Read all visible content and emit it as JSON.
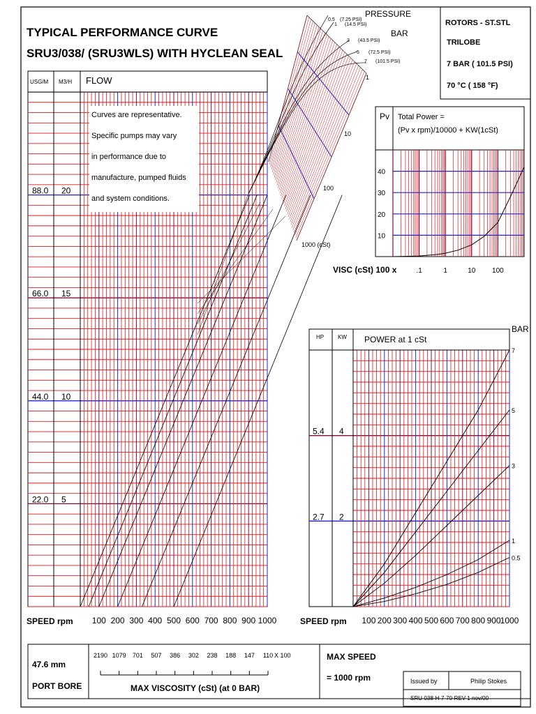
{
  "title": {
    "line1": "TYPICAL PERFORMANCE CURVE",
    "line2": "SRU3/038/ (SRU3WLS) WITH HYCLEAN SEAL"
  },
  "rotor_box": {
    "line1": "ROTORS - ST.STL",
    "line2": "TRILOBE",
    "line3": "7 BAR   ( 101.5 PSI)",
    "line4": "70 °C    ( 158 °F)"
  },
  "pressure_labels": {
    "pressure": "PRESSURE",
    "bar": "BAR",
    "items": [
      {
        "bar": "0.5",
        "psi": "(7.25 PSI)"
      },
      {
        "bar": "1",
        "psi": "(14.5 PSI)"
      },
      {
        "bar": "3",
        "psi": "(43.5 PSI)"
      },
      {
        "bar": "5",
        "psi": "(72.5 PSI)"
      },
      {
        "bar": "7",
        "psi": "(101.5 PSI)"
      }
    ]
  },
  "viscosity_scale_labels": [
    "1",
    "10",
    "100",
    "1000 (cSt)"
  ],
  "note": [
    "Curves are representative.",
    "Specific pumps may vary",
    "in performance due to",
    "manufacture, pumped fluids",
    "and system conditions."
  ],
  "flow_chart": {
    "col_usgm": "USG/M",
    "col_m3h": "M3/H",
    "header": "FLOW",
    "xlabel": "SPEED rpm",
    "chart_data": {
      "type": "line",
      "xlim": [
        0,
        1000
      ],
      "ylim_m3h": [
        0,
        25
      ],
      "x_ticks": [
        "100",
        "200",
        "300",
        "400",
        "500",
        "600",
        "700",
        "800",
        "900",
        "1000"
      ],
      "y_ticks": [
        {
          "usgm": "22.0",
          "m3h": "5",
          "value": 5
        },
        {
          "usgm": "44.0",
          "m3h": "10",
          "value": 10
        },
        {
          "usgm": "66.0",
          "m3h": "15",
          "value": 15
        },
        {
          "usgm": "88.0",
          "m3h": "20",
          "value": 20
        }
      ],
      "series": [
        {
          "start_rpm": 0,
          "end_rpm": 905
        },
        {
          "start_rpm": 45,
          "end_rpm": 945
        },
        {
          "start_rpm": 100,
          "end_rpm": 1000
        },
        {
          "start_rpm": 200,
          "end_rpm": 1100
        },
        {
          "start_rpm": 330,
          "end_rpm": 1230
        },
        {
          "start_rpm": 500,
          "end_rpm": 1400
        }
      ]
    }
  },
  "pv_chart": {
    "pv": "Pv",
    "formula1": "Total Power =",
    "formula2": "(Pv x rpm)/10000 + KW(1cSt)",
    "xlabel": "VISC (cSt)  100 x",
    "chart_data": {
      "type": "line",
      "x_scale": "log",
      "ylim": [
        0,
        50
      ],
      "x_ticks": [
        ".1",
        "1",
        "10",
        "100"
      ],
      "y_ticks": [
        "10",
        "20",
        "30",
        "40"
      ],
      "series": [
        {
          "x": [
            0.01,
            0.1,
            0.5,
            1,
            3,
            10,
            30,
            100,
            300,
            1000
          ],
          "y": [
            0,
            0.3,
            1,
            1.6,
            3,
            5.5,
            9.5,
            16,
            28,
            42
          ]
        }
      ]
    }
  },
  "power_chart": {
    "col_hp": "HP",
    "col_kw": "KW",
    "header": "POWER  at 1 cSt",
    "bar": "BAR",
    "xlabel": "SPEED rpm",
    "chart_data": {
      "type": "line",
      "xlim": [
        0,
        1000
      ],
      "ylim_kw": [
        0,
        6
      ],
      "x_ticks": [
        "100",
        "200",
        "300",
        "400",
        "500",
        "600",
        "700",
        "800",
        "900",
        "1000"
      ],
      "y_ticks": [
        {
          "hp": "2.7",
          "kw": "2",
          "value": 2
        },
        {
          "hp": "5.4",
          "kw": "4",
          "value": 4
        }
      ],
      "series": [
        {
          "name": "7",
          "x": [
            0,
            200,
            400,
            600,
            800,
            1000
          ],
          "y": [
            0,
            1.0,
            2.2,
            3.4,
            4.6,
            6.0
          ]
        },
        {
          "name": "5",
          "x": [
            0,
            200,
            400,
            600,
            800,
            1000
          ],
          "y": [
            0,
            0.8,
            1.75,
            2.7,
            3.65,
            4.6
          ]
        },
        {
          "name": "3",
          "x": [
            0,
            200,
            400,
            600,
            800,
            1000
          ],
          "y": [
            0,
            0.55,
            1.2,
            1.9,
            2.6,
            3.3
          ]
        },
        {
          "name": "1",
          "x": [
            0,
            200,
            400,
            600,
            800,
            1000
          ],
          "y": [
            0,
            0.2,
            0.45,
            0.75,
            1.1,
            1.55
          ]
        },
        {
          "name": "0.5",
          "x": [
            0,
            200,
            400,
            600,
            800,
            1000
          ],
          "y": [
            0,
            0.12,
            0.3,
            0.52,
            0.8,
            1.15
          ]
        }
      ]
    }
  },
  "max_viscosity": {
    "values": [
      "2190",
      "1079",
      "701",
      "507",
      "386",
      "302",
      "238",
      "188",
      "147",
      "110"
    ],
    "suffix": "X 100",
    "label": "MAX VISCOSITY (cSt)   (at 0 BAR)"
  },
  "port_bore": {
    "value": "47.6 mm",
    "label": "PORT BORE"
  },
  "max_speed": {
    "label": "MAX SPEED",
    "value": "= 1000 rpm"
  },
  "issued": {
    "label": "Issued by",
    "name": "Philip Stokes",
    "doc": "SRU-038-H-7-70-REV-1    nov/00"
  },
  "colors": {
    "grid_red": "#e0191f",
    "grid_blue": "#2222d0",
    "maroon": "#8b0a3a"
  }
}
